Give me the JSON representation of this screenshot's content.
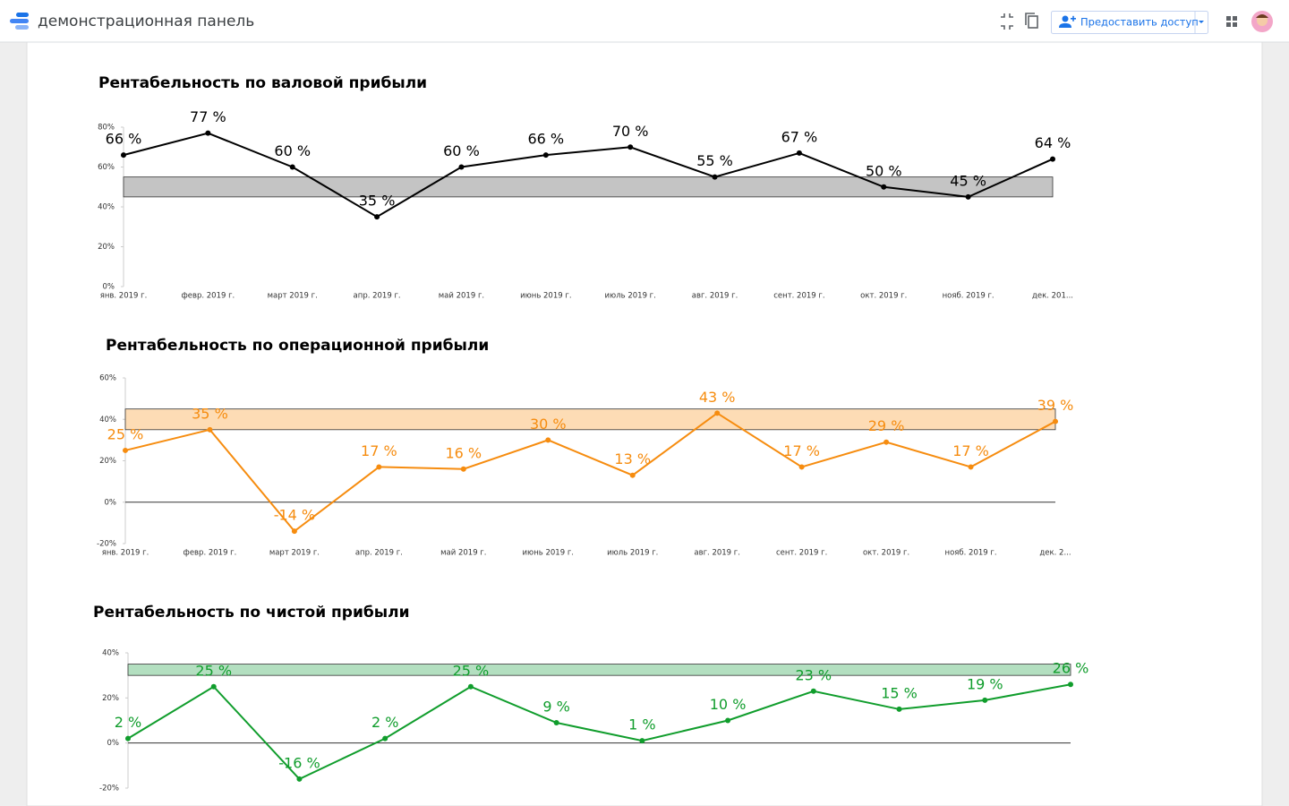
{
  "header": {
    "title": "демонстрационная панель",
    "share_button": "Предоставить доступ"
  },
  "chart_data": [
    {
      "type": "line",
      "title": "Рентабельность по валовой прибыли",
      "categories": [
        "янв. 2019 г.",
        "февр. 2019 г.",
        "март 2019 г.",
        "апр. 2019 г.",
        "май 2019 г.",
        "июнь 2019 г.",
        "июль 2019 г.",
        "авг. 2019 г.",
        "сент. 2019 г.",
        "окт. 2019 г.",
        "нояб. 2019 г.",
        "дек. 201..."
      ],
      "values": [
        66,
        77,
        60,
        35,
        60,
        66,
        70,
        55,
        67,
        50,
        45,
        64
      ],
      "value_labels": [
        "66 %",
        "77 %",
        "60 %",
        "35 %",
        "60 %",
        "66 %",
        "70 %",
        "55 %",
        "67 %",
        "50 %",
        "45 %",
        "64 %"
      ],
      "color": "#000000",
      "band": {
        "range": [
          45,
          55
        ],
        "color": "#c4c4c4"
      },
      "ylim": [
        0,
        80
      ],
      "yticks": [
        {
          "value": 0,
          "label": "0%"
        },
        {
          "value": 20,
          "label": "20%"
        },
        {
          "value": 40,
          "label": "40%"
        },
        {
          "value": 60,
          "label": "60%"
        },
        {
          "value": 80,
          "label": "80%"
        }
      ]
    },
    {
      "type": "line",
      "title": "Рентабельность по операционной прибыли",
      "categories": [
        "янв. 2019 г.",
        "февр. 2019 г.",
        "март 2019 г.",
        "апр. 2019 г.",
        "май 2019 г.",
        "июнь 2019 г.",
        "июль 2019 г.",
        "авг. 2019 г.",
        "сент. 2019 г.",
        "окт. 2019 г.",
        "нояб. 2019 г.",
        "дек. 2..."
      ],
      "values": [
        25,
        35,
        -14,
        17,
        16,
        30,
        13,
        43,
        17,
        29,
        17,
        39
      ],
      "value_labels": [
        "25 %",
        "35 %",
        "-14 %",
        "17 %",
        "16 %",
        "30 %",
        "13 %",
        "43 %",
        "17 %",
        "29 %",
        "17 %",
        "39 %"
      ],
      "color": "#f68c0f",
      "band": {
        "range": [
          35,
          45
        ],
        "color": "#fddcb5"
      },
      "ylim": [
        -20,
        60
      ],
      "yticks": [
        {
          "value": -20,
          "label": "-20%"
        },
        {
          "value": 0,
          "label": "0%"
        },
        {
          "value": 20,
          "label": "20%"
        },
        {
          "value": 40,
          "label": "40%"
        },
        {
          "value": 60,
          "label": "60%"
        }
      ]
    },
    {
      "type": "line",
      "title": "Рентабельность по чистой прибыли",
      "values": [
        2,
        25,
        -16,
        2,
        25,
        9,
        1,
        10,
        23,
        15,
        19,
        26
      ],
      "value_labels": [
        "2 %",
        "25 %",
        "-16 %",
        "2 %",
        "25 %",
        "9 %",
        "1 %",
        "10 %",
        "23 %",
        "15 %",
        "19 %",
        "26 %"
      ],
      "color": "#109d2c",
      "band": {
        "range": [
          30,
          35
        ],
        "color": "#b3dfc0"
      },
      "ylim": [
        -20,
        40
      ],
      "yticks": [
        {
          "value": -20,
          "label": "-20%"
        },
        {
          "value": 0,
          "label": "0%"
        },
        {
          "value": 20,
          "label": "20%"
        },
        {
          "value": 40,
          "label": "40%"
        }
      ]
    }
  ]
}
